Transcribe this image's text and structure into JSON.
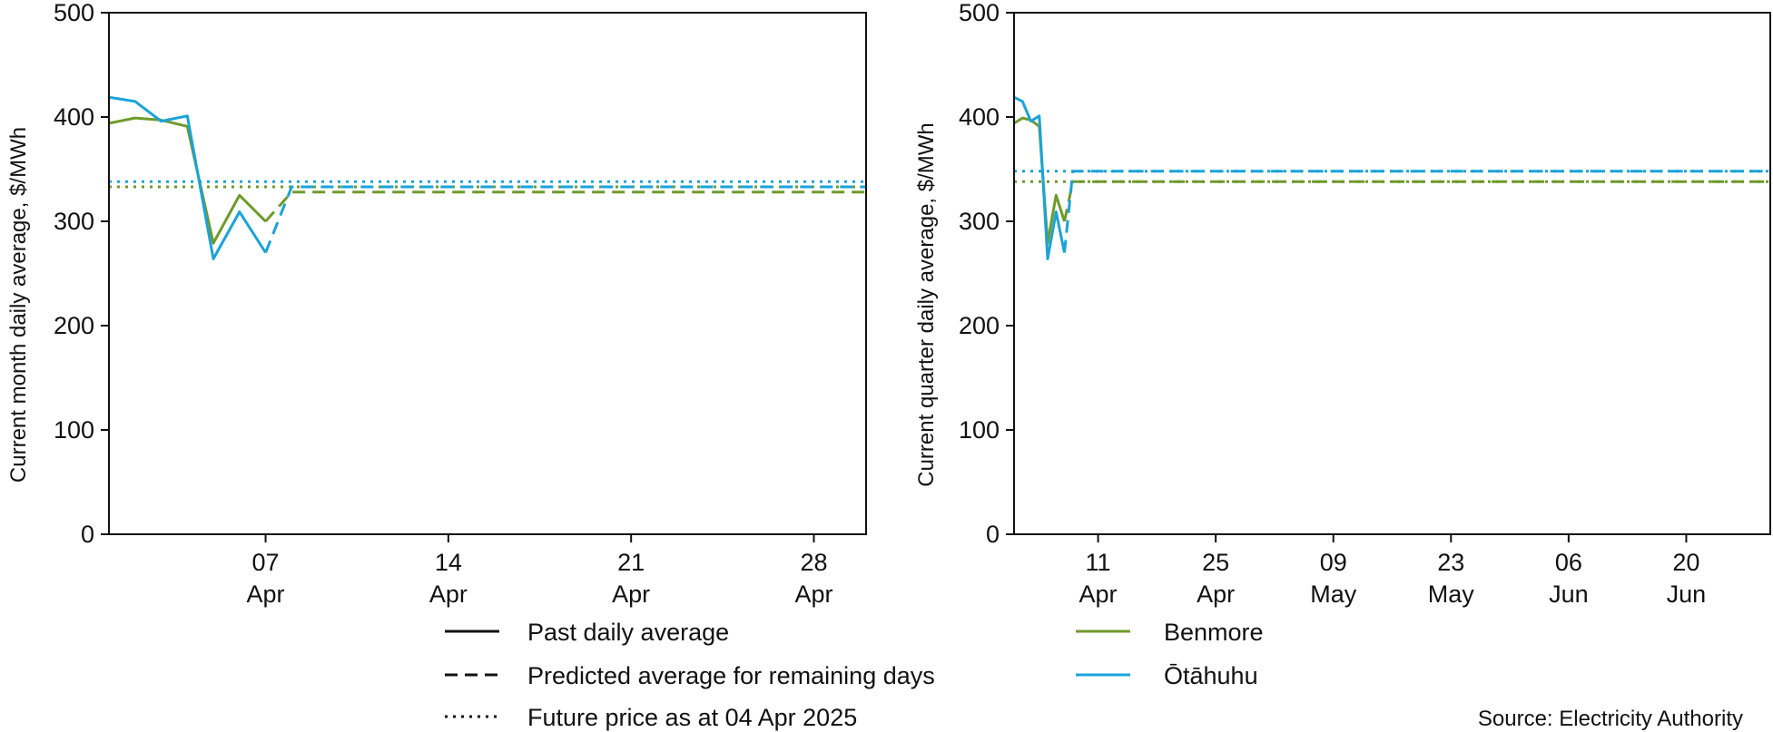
{
  "colors": {
    "benmore": "#6f9a2a",
    "otahuhu": "#1aa3d8",
    "axis": "#111111"
  },
  "legend": {
    "styles": [
      {
        "label": "Past daily average",
        "dash": "solid"
      },
      {
        "label": "Predicted average for remaining days",
        "dash": "dashed"
      },
      {
        "label": "Future price as at 04 Apr 2025",
        "dash": "dotted"
      }
    ],
    "nodes": [
      {
        "label": "Benmore",
        "color": "#6f9a2a"
      },
      {
        "label": "Ōtāhuhu",
        "color": "#1aa3d8"
      }
    ]
  },
  "source": "Source: Electricity Authority",
  "chart_data": [
    {
      "type": "line",
      "ylabel": "Current month daily average, $/MWh",
      "ylim": [
        0,
        500
      ],
      "yticks": [
        0,
        100,
        200,
        300,
        400,
        500
      ],
      "xlim": [
        "2025-04-01",
        "2025-04-30"
      ],
      "xticks": [
        {
          "date": "2025-04-07",
          "day": "07",
          "month": "Apr"
        },
        {
          "date": "2025-04-14",
          "day": "14",
          "month": "Apr"
        },
        {
          "date": "2025-04-21",
          "day": "21",
          "month": "Apr"
        },
        {
          "date": "2025-04-28",
          "day": "28",
          "month": "Apr"
        }
      ],
      "series": [
        {
          "name": "Benmore",
          "color": "#6f9a2a",
          "style": "solid",
          "x": [
            "2025-04-01",
            "2025-04-02",
            "2025-04-03",
            "2025-04-04",
            "2025-04-05",
            "2025-04-06",
            "2025-04-07"
          ],
          "y": [
            394,
            399,
            397,
            391,
            279,
            325,
            300
          ]
        },
        {
          "name": "Benmore",
          "color": "#6f9a2a",
          "style": "dashed",
          "x": [
            "2025-04-07",
            "2025-04-08",
            "2025-04-30"
          ],
          "y": [
            300,
            328,
            328
          ]
        },
        {
          "name": "Benmore",
          "color": "#6f9a2a",
          "style": "dotted",
          "x": [
            "2025-04-01",
            "2025-04-30"
          ],
          "y": [
            333,
            333
          ]
        },
        {
          "name": "Ōtāhuhu",
          "color": "#1aa3d8",
          "style": "solid",
          "x": [
            "2025-04-01",
            "2025-04-02",
            "2025-04-03",
            "2025-04-04",
            "2025-04-05",
            "2025-04-06",
            "2025-04-07"
          ],
          "y": [
            419,
            415,
            396,
            401,
            264,
            309,
            270
          ]
        },
        {
          "name": "Ōtāhuhu",
          "color": "#1aa3d8",
          "style": "dashed",
          "x": [
            "2025-04-07",
            "2025-04-08",
            "2025-04-30"
          ],
          "y": [
            270,
            333,
            333
          ]
        },
        {
          "name": "Ōtāhuhu",
          "color": "#1aa3d8",
          "style": "dotted",
          "x": [
            "2025-04-01",
            "2025-04-30"
          ],
          "y": [
            338,
            338
          ]
        }
      ]
    },
    {
      "type": "line",
      "ylabel": "Current quarter daily average, $/MWh",
      "ylim": [
        0,
        500
      ],
      "yticks": [
        0,
        100,
        200,
        300,
        400,
        500
      ],
      "xlim": [
        "2025-04-01",
        "2025-06-30"
      ],
      "xticks": [
        {
          "date": "2025-04-11",
          "day": "11",
          "month": "Apr"
        },
        {
          "date": "2025-04-25",
          "day": "25",
          "month": "Apr"
        },
        {
          "date": "2025-05-09",
          "day": "09",
          "month": "May"
        },
        {
          "date": "2025-05-23",
          "day": "23",
          "month": "May"
        },
        {
          "date": "2025-06-06",
          "day": "06",
          "month": "Jun"
        },
        {
          "date": "2025-06-20",
          "day": "20",
          "month": "Jun"
        }
      ],
      "series": [
        {
          "name": "Benmore",
          "color": "#6f9a2a",
          "style": "solid",
          "x": [
            "2025-04-01",
            "2025-04-02",
            "2025-04-03",
            "2025-04-04",
            "2025-04-05",
            "2025-04-06",
            "2025-04-07"
          ],
          "y": [
            394,
            399,
            397,
            391,
            279,
            325,
            300
          ]
        },
        {
          "name": "Benmore",
          "color": "#6f9a2a",
          "style": "dashed",
          "x": [
            "2025-04-07",
            "2025-04-08",
            "2025-06-30"
          ],
          "y": [
            300,
            338,
            338
          ]
        },
        {
          "name": "Benmore",
          "color": "#6f9a2a",
          "style": "dotted",
          "x": [
            "2025-04-01",
            "2025-06-30"
          ],
          "y": [
            338,
            338
          ]
        },
        {
          "name": "Ōtāhuhu",
          "color": "#1aa3d8",
          "style": "solid",
          "x": [
            "2025-04-01",
            "2025-04-02",
            "2025-04-03",
            "2025-04-04",
            "2025-04-05",
            "2025-04-06",
            "2025-04-07"
          ],
          "y": [
            419,
            415,
            396,
            401,
            264,
            309,
            270
          ]
        },
        {
          "name": "Ōtāhuhu",
          "color": "#1aa3d8",
          "style": "dashed",
          "x": [
            "2025-04-07",
            "2025-04-08",
            "2025-06-30"
          ],
          "y": [
            270,
            348,
            348
          ]
        },
        {
          "name": "Ōtāhuhu",
          "color": "#1aa3d8",
          "style": "dotted",
          "x": [
            "2025-04-01",
            "2025-06-30"
          ],
          "y": [
            348,
            348
          ]
        }
      ]
    }
  ]
}
